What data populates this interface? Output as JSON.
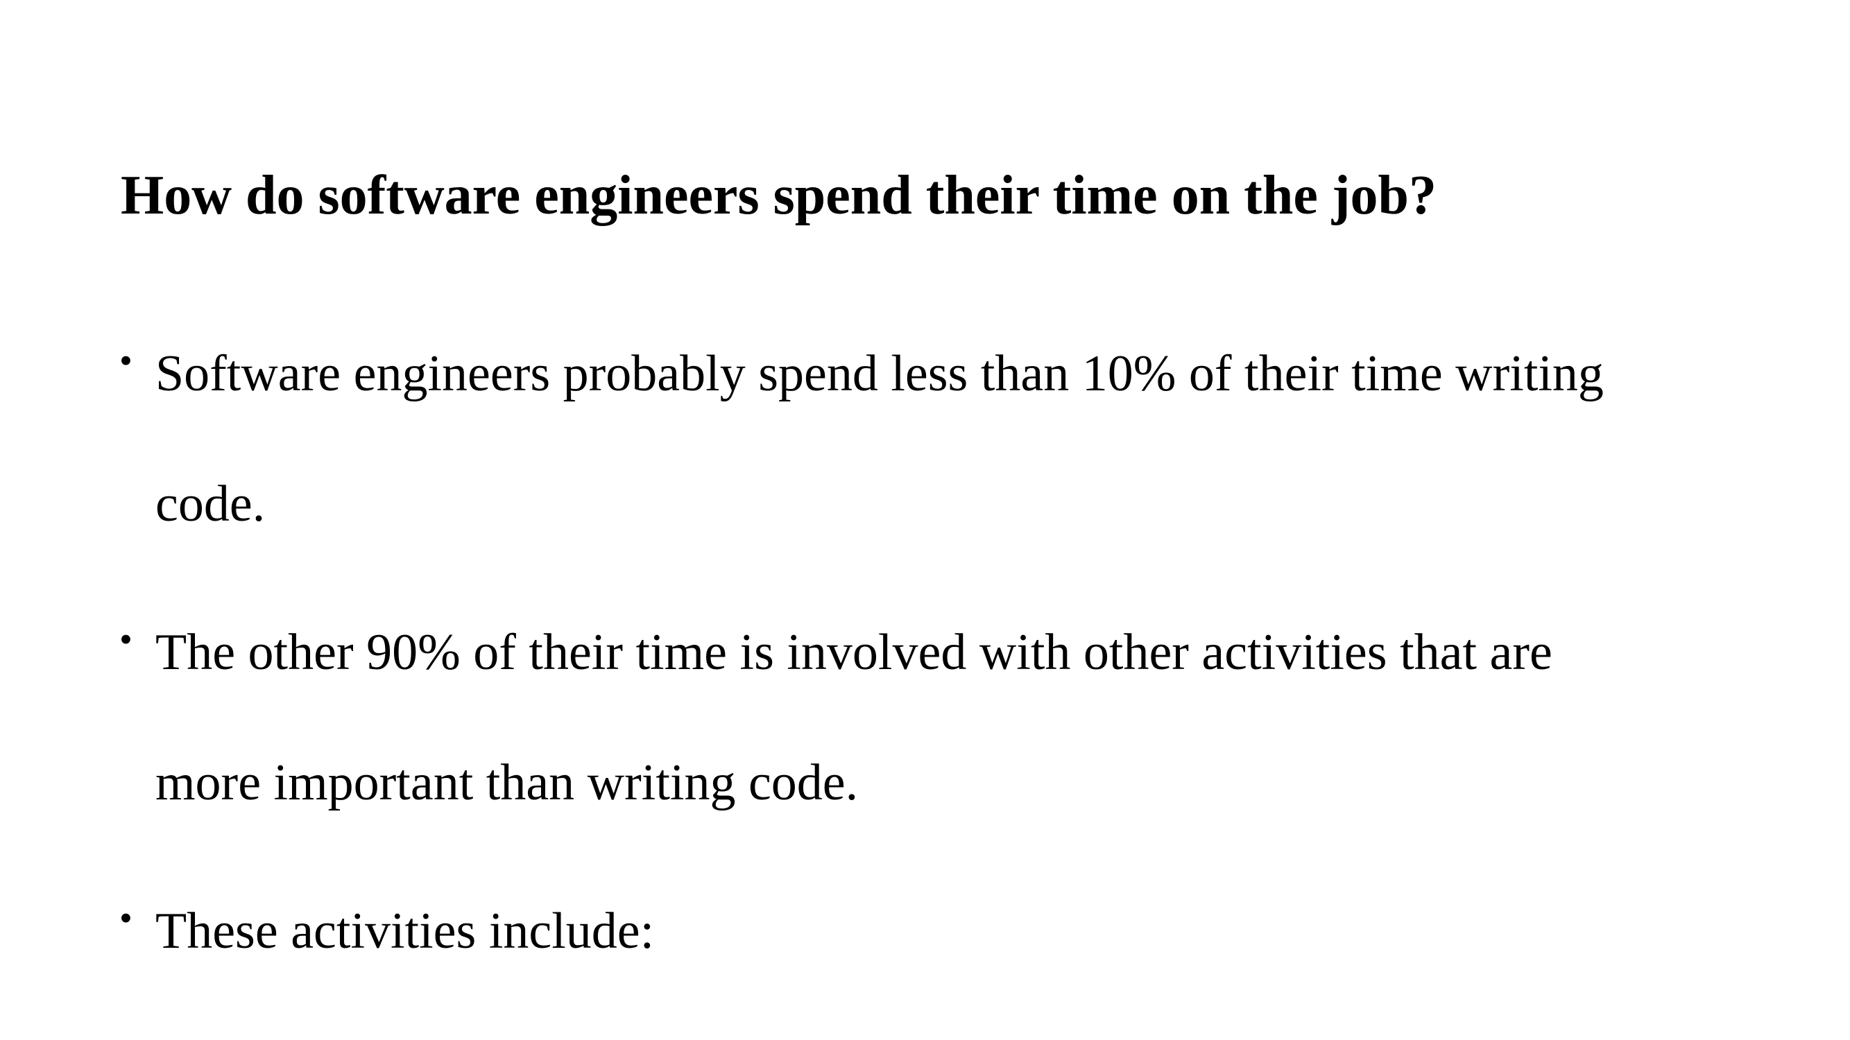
{
  "slide": {
    "title": "How do software engineers spend their time on the job?",
    "bullets": [
      {
        "marker": "•",
        "lines": [
          "Software engineers probably spend less than 10% of their time writing",
          "code."
        ]
      },
      {
        "marker": "•",
        "lines": [
          "The other 90% of their time is involved with other activities that are",
          "more important than writing code."
        ]
      },
      {
        "marker": "•",
        "lines": [
          "These activities include:"
        ]
      }
    ]
  }
}
